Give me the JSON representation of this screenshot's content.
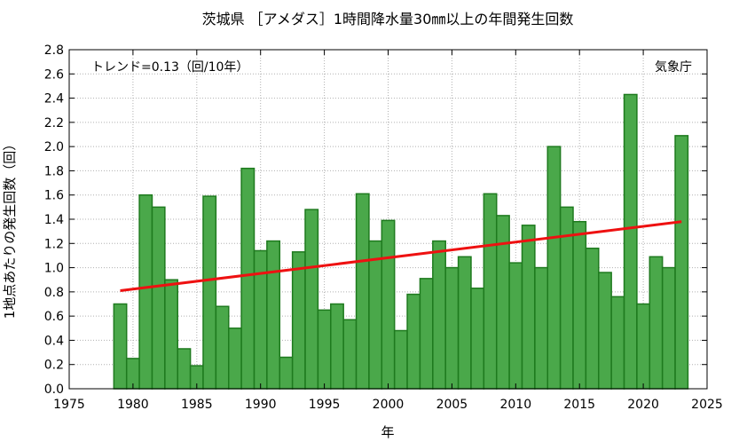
{
  "chart_data": {
    "type": "bar",
    "title": "茨城県 ［アメダス］1時間降水量30㎜以上の年間発生回数",
    "xlabel": "年",
    "ylabel": "1地点あたりの発生回数（回）",
    "trend_label": "トレンド=0.13（回/10年）",
    "source_label": "気象庁",
    "xlim": [
      1975,
      2025
    ],
    "ylim": [
      0,
      2.8
    ],
    "xticks": [
      1975,
      1980,
      1985,
      1990,
      1995,
      2000,
      2005,
      2010,
      2015,
      2020,
      2025
    ],
    "yticks": [
      0.0,
      0.2,
      0.4,
      0.6,
      0.8,
      1.0,
      1.2,
      1.4,
      1.6,
      1.8,
      2.0,
      2.2,
      2.4,
      2.6,
      2.8
    ],
    "xtick_labels": [
      "1975",
      "1980",
      "1985",
      "1990",
      "1995",
      "2000",
      "2005",
      "2010",
      "2015",
      "2020",
      "2025"
    ],
    "ytick_labels": [
      "0.0",
      "0.2",
      "0.4",
      "0.6",
      "0.8",
      "1.0",
      "1.2",
      "1.4",
      "1.6",
      "1.8",
      "2.0",
      "2.2",
      "2.4",
      "2.6",
      "2.8"
    ],
    "grid": true,
    "colors": {
      "bar_fill": "#4aa84a",
      "bar_edge": "#1e7a1e",
      "trend": "#ee1111"
    },
    "categories": [
      1979,
      1980,
      1981,
      1982,
      1983,
      1984,
      1985,
      1986,
      1987,
      1988,
      1989,
      1990,
      1991,
      1992,
      1993,
      1994,
      1995,
      1996,
      1997,
      1998,
      1999,
      2000,
      2001,
      2002,
      2003,
      2004,
      2005,
      2006,
      2007,
      2008,
      2009,
      2010,
      2011,
      2012,
      2013,
      2014,
      2015,
      2016,
      2017,
      2018,
      2019,
      2020,
      2021,
      2022,
      2023
    ],
    "values": [
      0.7,
      0.25,
      1.6,
      1.5,
      0.9,
      0.33,
      0.19,
      1.59,
      0.68,
      0.5,
      1.82,
      1.14,
      1.22,
      0.26,
      1.13,
      1.48,
      0.65,
      0.7,
      0.57,
      1.61,
      1.22,
      1.39,
      0.48,
      0.78,
      0.91,
      1.22,
      1.0,
      1.09,
      0.83,
      1.61,
      1.43,
      1.04,
      1.35,
      1.0,
      2.0,
      1.5,
      1.38,
      1.16,
      0.96,
      0.76,
      2.43,
      0.7,
      1.09,
      1.0,
      2.09
    ],
    "trend_line": {
      "x": [
        1979,
        2023
      ],
      "y": [
        0.81,
        1.38
      ]
    }
  }
}
